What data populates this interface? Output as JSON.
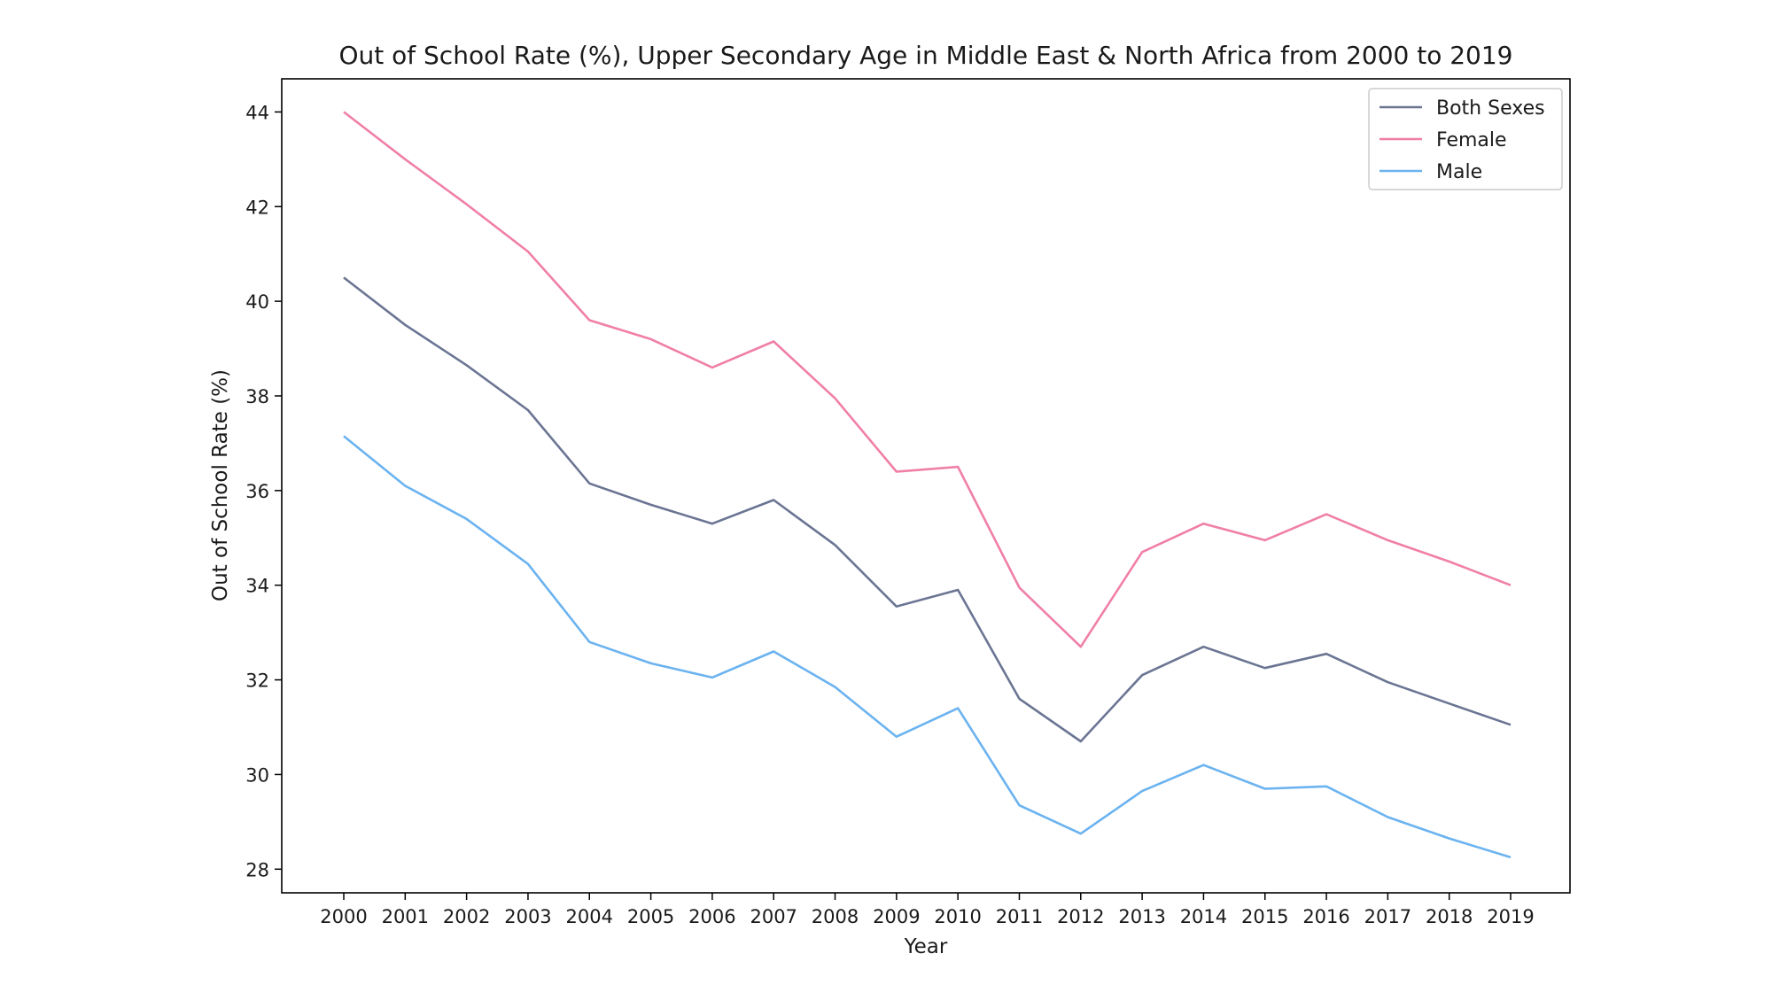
{
  "chart_data": {
    "type": "line",
    "title": "Out of School Rate (%), Upper Secondary Age in Middle East & North Africa from 2000 to 2019",
    "xlabel": "Year",
    "ylabel": "Out of School Rate (%)",
    "x": [
      "2000",
      "2001",
      "2002",
      "2003",
      "2004",
      "2005",
      "2006",
      "2007",
      "2008",
      "2009",
      "2010",
      "2011",
      "2012",
      "2013",
      "2014",
      "2015",
      "2016",
      "2017",
      "2018",
      "2019"
    ],
    "yticks": [
      28,
      30,
      32,
      34,
      36,
      38,
      40,
      42,
      44
    ],
    "ylim": [
      27.5,
      44.7
    ],
    "grid": false,
    "legend_position": "top-right",
    "series": [
      {
        "name": "Both Sexes",
        "color": "#6b7593",
        "values": [
          40.5,
          39.5,
          38.65,
          37.7,
          36.15,
          35.7,
          35.3,
          35.8,
          34.85,
          33.55,
          33.9,
          31.6,
          30.7,
          32.1,
          32.7,
          32.25,
          32.55,
          31.95,
          31.5,
          31.05
        ]
      },
      {
        "name": "Female",
        "color": "#f07fa8",
        "values": [
          44.0,
          43.0,
          42.05,
          41.05,
          39.6,
          39.2,
          38.6,
          39.15,
          37.95,
          36.4,
          36.5,
          33.95,
          32.7,
          34.7,
          35.3,
          34.95,
          35.5,
          34.95,
          34.5,
          34.0
        ]
      },
      {
        "name": "Male",
        "color": "#6bb3f0",
        "values": [
          37.15,
          36.1,
          35.4,
          34.45,
          32.8,
          32.35,
          32.05,
          32.6,
          31.85,
          30.8,
          31.4,
          29.35,
          28.75,
          29.65,
          30.2,
          29.7,
          29.75,
          29.1,
          28.65,
          28.25
        ]
      }
    ]
  }
}
